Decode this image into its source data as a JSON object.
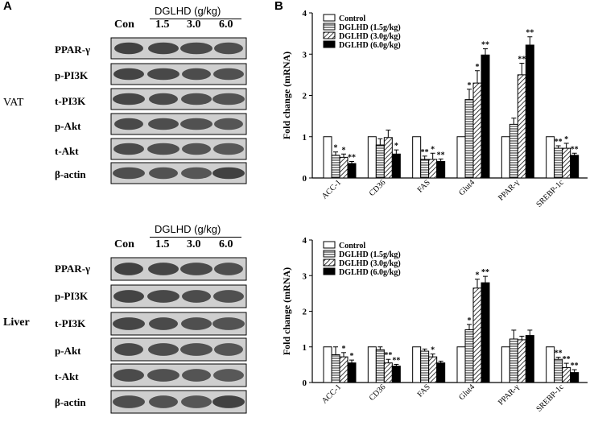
{
  "panel_a": {
    "letter": "A",
    "blots": [
      {
        "tissue": "VAT",
        "treatment_header": "DGLHD (g/kg)",
        "lanes": [
          "Con",
          "1.5",
          "3.0",
          "6.0"
        ],
        "proteins": [
          "PPAR-γ",
          "p-PI3K",
          "t-PI3K",
          "p-Akt",
          "t-Akt",
          "β-actin"
        ]
      },
      {
        "tissue": "Liver",
        "treatment_header": "DGLHD (g/kg)",
        "lanes": [
          "Con",
          "1.5",
          "3.0",
          "6.0"
        ],
        "proteins": [
          "PPAR-γ",
          "p-PI3K",
          "t-PI3K",
          "p-Akt",
          "t-Akt",
          "β-actin"
        ]
      }
    ]
  },
  "panel_b_letter": "B",
  "chart_data": [
    {
      "type": "bar",
      "tissue": "VAT",
      "ylabel": "Fold change (mRNA)",
      "ylim": [
        0,
        4
      ],
      "yticks": [
        "0",
        "1",
        "2",
        "3",
        "4"
      ],
      "categories": [
        "ACC-1",
        "CD36",
        "FAS",
        "Glut4",
        "PPAR-γ",
        "SREBP-1c"
      ],
      "legend_position": "top-left",
      "series": [
        {
          "name": "Control",
          "pattern": "white",
          "values": [
            1.0,
            1.0,
            1.0,
            1.0,
            1.0,
            1.0
          ],
          "errors": [
            0,
            0,
            0,
            0,
            0,
            0
          ],
          "marks": [
            "",
            "",
            "",
            "",
            "",
            ""
          ]
        },
        {
          "name": "DGLHD (1.5g/kg)",
          "pattern": "horizontal",
          "values": [
            0.55,
            0.8,
            0.45,
            1.9,
            1.3,
            0.72
          ],
          "errors": [
            0.08,
            0.15,
            0.08,
            0.25,
            0.15,
            0.06
          ],
          "marks": [
            "*",
            "",
            "**",
            "*",
            "",
            "**"
          ]
        },
        {
          "name": "DGLHD (3.0g/kg)",
          "pattern": "diagonal",
          "values": [
            0.5,
            0.98,
            0.45,
            2.3,
            2.5,
            0.72
          ],
          "errors": [
            0.08,
            0.18,
            0.15,
            0.3,
            0.28,
            0.12
          ],
          "marks": [
            "*",
            "",
            "*",
            "*",
            "**",
            "*"
          ]
        },
        {
          "name": "DGLHD (6.0g/kg)",
          "pattern": "black",
          "values": [
            0.35,
            0.58,
            0.4,
            2.98,
            3.22,
            0.55
          ],
          "errors": [
            0.05,
            0.1,
            0.06,
            0.15,
            0.2,
            0.05
          ],
          "marks": [
            "**",
            "*",
            "**",
            "**",
            "**",
            "**"
          ]
        }
      ]
    },
    {
      "type": "bar",
      "tissue": "Liver",
      "ylabel": "Fold change (mRNA)",
      "ylim": [
        0,
        4
      ],
      "yticks": [
        "0",
        "1",
        "2",
        "3",
        "4"
      ],
      "categories": [
        "ACC-1",
        "CD36",
        "FAS",
        "Glut4",
        "PPAR-γ",
        "SREBP-1c"
      ],
      "legend_position": "top-left",
      "series": [
        {
          "name": "Control",
          "pattern": "white",
          "values": [
            1.0,
            1.0,
            1.0,
            1.0,
            1.0,
            1.0
          ],
          "errors": [
            0,
            0,
            0,
            0,
            0,
            0
          ],
          "marks": [
            "",
            "",
            "",
            "",
            "",
            ""
          ]
        },
        {
          "name": "DGLHD (1.5g/kg)",
          "pattern": "horizontal",
          "values": [
            0.78,
            0.92,
            0.88,
            1.48,
            1.22,
            0.65
          ],
          "errors": [
            0.22,
            0.08,
            0.06,
            0.15,
            0.25,
            0.06
          ],
          "marks": [
            "",
            "",
            "",
            "*",
            "",
            "**"
          ]
        },
        {
          "name": "DGLHD (3.0g/kg)",
          "pattern": "diagonal",
          "values": [
            0.72,
            0.55,
            0.72,
            2.65,
            1.2,
            0.42
          ],
          "errors": [
            0.12,
            0.1,
            0.08,
            0.25,
            0.1,
            0.12
          ],
          "marks": [
            "*",
            "**",
            "*",
            "*",
            "",
            "**"
          ]
        },
        {
          "name": "DGLHD (6.0g/kg)",
          "pattern": "black",
          "values": [
            0.55,
            0.46,
            0.55,
            2.8,
            1.32,
            0.28
          ],
          "errors": [
            0.08,
            0.05,
            0.05,
            0.18,
            0.15,
            0.08
          ],
          "marks": [
            "*",
            "**",
            "",
            "**",
            "",
            "**"
          ]
        }
      ]
    }
  ]
}
